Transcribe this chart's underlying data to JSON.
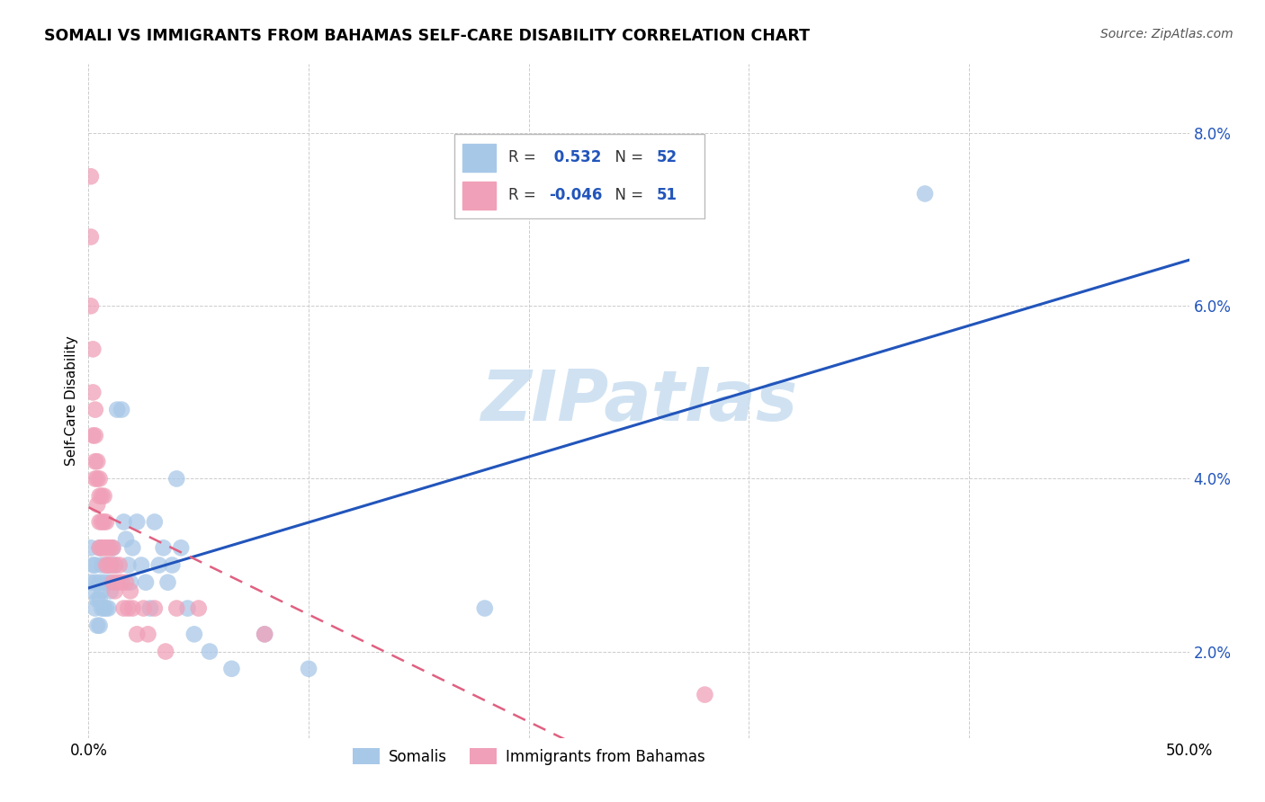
{
  "title": "SOMALI VS IMMIGRANTS FROM BAHAMAS SELF-CARE DISABILITY CORRELATION CHART",
  "source": "Source: ZipAtlas.com",
  "ylabel": "Self-Care Disability",
  "r_somali": 0.532,
  "n_somali": 52,
  "r_bahamas": -0.046,
  "n_bahamas": 51,
  "somali_color": "#a8c8e8",
  "bahamas_color": "#f0a0b8",
  "somali_line_color": "#2255bb",
  "bahamas_line_color": "#e06080",
  "watermark_color": "#c8ddf0",
  "xlim": [
    0.0,
    0.5
  ],
  "ylim_low": 0.01,
  "ylim_high": 0.088,
  "yticks": [
    0.02,
    0.04,
    0.06,
    0.08
  ],
  "ytick_labels": [
    "2.0%",
    "4.0%",
    "6.0%",
    "8.0%"
  ],
  "somali_x": [
    0.001,
    0.001,
    0.002,
    0.002,
    0.003,
    0.003,
    0.003,
    0.004,
    0.004,
    0.005,
    0.005,
    0.005,
    0.005,
    0.006,
    0.006,
    0.006,
    0.007,
    0.007,
    0.008,
    0.008,
    0.009,
    0.009,
    0.01,
    0.01,
    0.011,
    0.012,
    0.013,
    0.015,
    0.016,
    0.017,
    0.018,
    0.019,
    0.02,
    0.022,
    0.024,
    0.026,
    0.028,
    0.03,
    0.032,
    0.034,
    0.036,
    0.038,
    0.04,
    0.042,
    0.045,
    0.048,
    0.055,
    0.065,
    0.08,
    0.1,
    0.18,
    0.38
  ],
  "somali_y": [
    0.032,
    0.028,
    0.03,
    0.027,
    0.028,
    0.025,
    0.03,
    0.026,
    0.023,
    0.032,
    0.028,
    0.026,
    0.023,
    0.03,
    0.027,
    0.025,
    0.028,
    0.025,
    0.03,
    0.025,
    0.028,
    0.025,
    0.03,
    0.027,
    0.032,
    0.03,
    0.048,
    0.048,
    0.035,
    0.033,
    0.03,
    0.028,
    0.032,
    0.035,
    0.03,
    0.028,
    0.025,
    0.035,
    0.03,
    0.032,
    0.028,
    0.03,
    0.04,
    0.032,
    0.025,
    0.022,
    0.02,
    0.018,
    0.022,
    0.018,
    0.025,
    0.073
  ],
  "bahamas_x": [
    0.001,
    0.001,
    0.001,
    0.002,
    0.002,
    0.002,
    0.003,
    0.003,
    0.003,
    0.003,
    0.004,
    0.004,
    0.004,
    0.005,
    0.005,
    0.005,
    0.005,
    0.006,
    0.006,
    0.006,
    0.007,
    0.007,
    0.007,
    0.008,
    0.008,
    0.008,
    0.009,
    0.009,
    0.01,
    0.01,
    0.011,
    0.011,
    0.012,
    0.012,
    0.013,
    0.014,
    0.015,
    0.016,
    0.017,
    0.018,
    0.019,
    0.02,
    0.022,
    0.025,
    0.027,
    0.03,
    0.035,
    0.04,
    0.05,
    0.08,
    0.28
  ],
  "bahamas_y": [
    0.075,
    0.068,
    0.06,
    0.055,
    0.05,
    0.045,
    0.048,
    0.045,
    0.042,
    0.04,
    0.042,
    0.04,
    0.037,
    0.04,
    0.038,
    0.035,
    0.032,
    0.038,
    0.035,
    0.032,
    0.038,
    0.035,
    0.032,
    0.035,
    0.032,
    0.03,
    0.032,
    0.03,
    0.032,
    0.03,
    0.032,
    0.028,
    0.03,
    0.027,
    0.028,
    0.03,
    0.028,
    0.025,
    0.028,
    0.025,
    0.027,
    0.025,
    0.022,
    0.025,
    0.022,
    0.025,
    0.02,
    0.025,
    0.025,
    0.022,
    0.015
  ]
}
